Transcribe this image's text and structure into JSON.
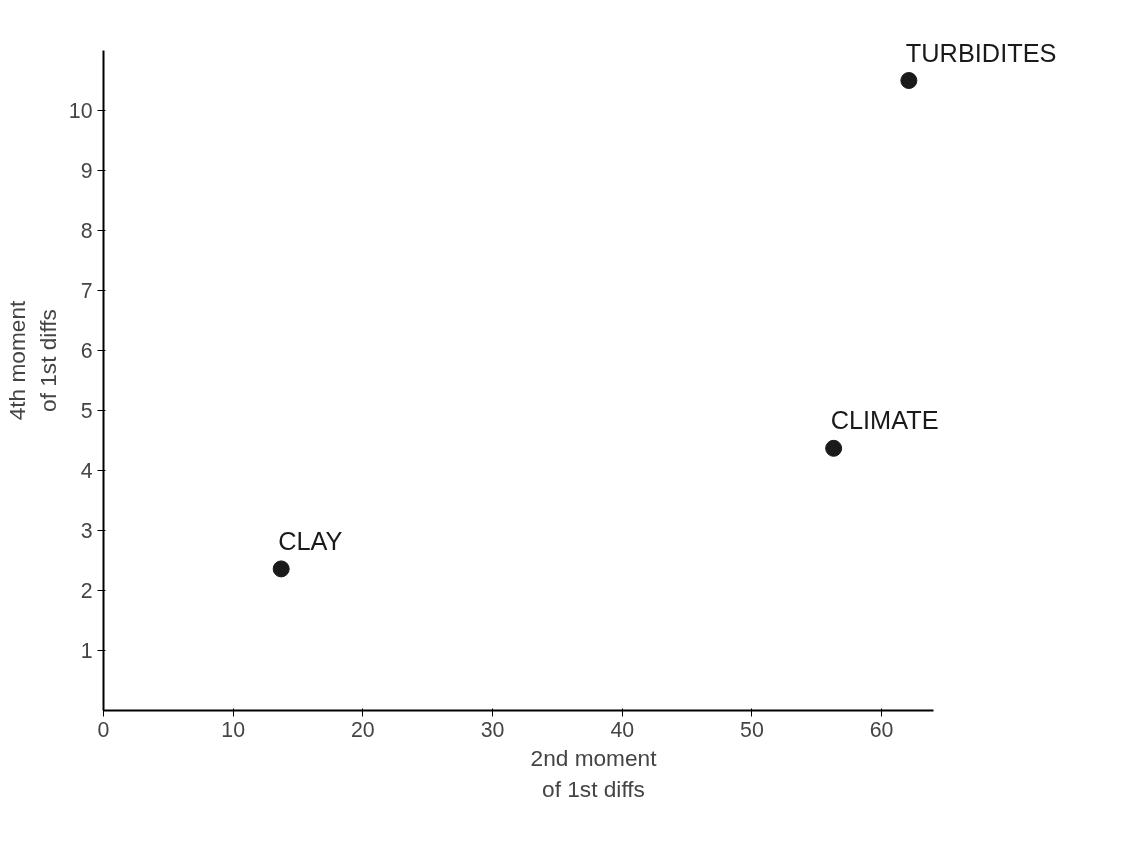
{
  "chart_data": {
    "type": "scatter",
    "xlabel": "2nd moment\nof 1st diffs",
    "ylabel": "4th moment\nof 1st diffs",
    "x": [
      13.7,
      56.3,
      62.1
    ],
    "series": [
      {
        "color": "#1a1a1a",
        "values": [
          2.36,
          4.37,
          10.5
        ]
      }
    ],
    "annotations": [
      {
        "text": "CLAY",
        "x": 13.7,
        "y": 2.36
      },
      {
        "text": "CLIMATE",
        "x": 56.3,
        "y": 4.37
      },
      {
        "text": "TURBIDITES",
        "x": 62.1,
        "y": 10.5
      }
    ],
    "xlim": [
      0,
      64
    ],
    "ylim": [
      0,
      11
    ],
    "xticks": [
      0,
      10,
      20,
      30,
      40,
      50,
      60
    ],
    "yticks": [
      1,
      2,
      3,
      4,
      5,
      6,
      7,
      8,
      9,
      10
    ],
    "grid": false,
    "marker": "circle"
  }
}
